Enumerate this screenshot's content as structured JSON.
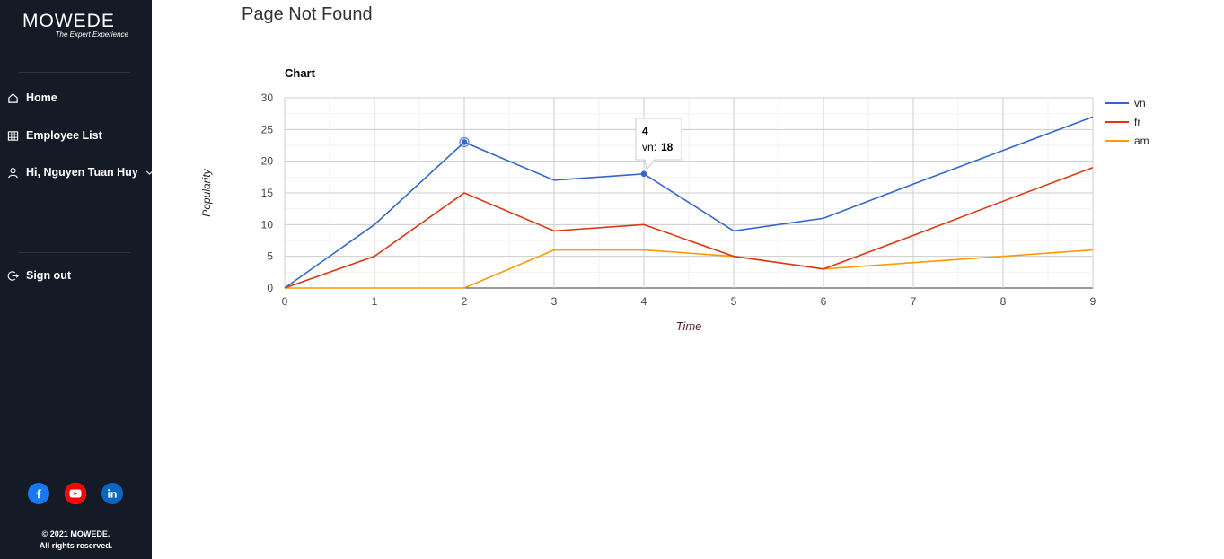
{
  "sidebar": {
    "brand": "MOWEDE",
    "tagline": "The Expert Experience",
    "nav": [
      {
        "label": "Home",
        "icon": "home-icon"
      },
      {
        "label": "Employee List",
        "icon": "grid-icon"
      },
      {
        "label": "Hi, Nguyen Tuan Huy",
        "icon": "user-icon"
      }
    ],
    "signout": {
      "label": "Sign out",
      "icon": "signout-icon"
    },
    "social": [
      {
        "name": "facebook-icon",
        "color": "#1877f2"
      },
      {
        "name": "youtube-icon",
        "color": "#ff0000"
      },
      {
        "name": "linkedin-icon",
        "color": "#0a66c2"
      }
    ],
    "footer_line1": "© 2021 MOWEDE.",
    "footer_line2": "All rights reserved."
  },
  "page": {
    "title": "Page Not Found"
  },
  "chart_data": {
    "type": "line",
    "title": "Chart",
    "xlabel": "Time",
    "ylabel": "Popularity",
    "x": [
      0,
      1,
      2,
      3,
      4,
      5,
      6,
      7,
      8,
      9
    ],
    "xlim": [
      0,
      9
    ],
    "ylim": [
      0,
      30
    ],
    "yticks": [
      0,
      5,
      10,
      15,
      20,
      25,
      30
    ],
    "grid": true,
    "legend_position": "right",
    "series": [
      {
        "name": "vn",
        "color": "#3366cc",
        "values": [
          0,
          10,
          23,
          17,
          18,
          9,
          11,
          16.4,
          21.7,
          27
        ]
      },
      {
        "name": "fr",
        "color": "#dc3912",
        "values": [
          0,
          5,
          15,
          9,
          10,
          5,
          3,
          8.3,
          13.7,
          19
        ]
      },
      {
        "name": "am",
        "color": "#ff9900",
        "values": [
          0,
          0,
          0,
          6,
          6,
          5,
          3,
          4,
          5,
          6
        ]
      }
    ],
    "tooltip": {
      "x": "4",
      "series": "vn",
      "label": "vn:",
      "value": "18"
    }
  }
}
